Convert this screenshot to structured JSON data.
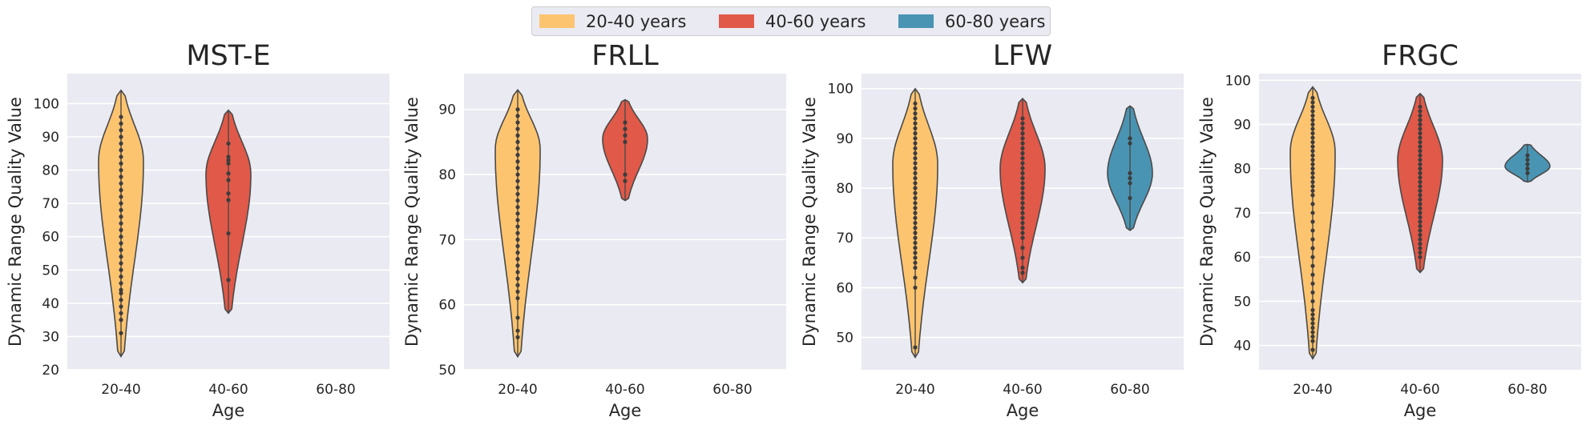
{
  "legend": {
    "items": [
      {
        "label": "20-40 years",
        "color": "#fdc470"
      },
      {
        "label": "40-60 years",
        "color": "#e15948"
      },
      {
        "label": "60-80 years",
        "color": "#4a94b3"
      }
    ]
  },
  "style": {
    "panel_bg": "#eaeaf2",
    "grid_color": "#ffffff",
    "text_color": "#262626",
    "point_color": "#3d3d3d"
  },
  "chart_data": [
    {
      "type": "violin",
      "title": "MST-E",
      "xlabel": "Age",
      "ylabel": "Dynamic Range Quality Value",
      "categories": [
        "20-40",
        "40-60",
        "60-80"
      ],
      "ylim": [
        20,
        109
      ],
      "yticks": [
        20,
        30,
        40,
        50,
        60,
        70,
        80,
        90,
        100
      ],
      "grid": true,
      "violins": [
        {
          "category": "20-40",
          "min": 24,
          "max": 104,
          "peak": 83,
          "points": [
            31,
            35,
            37,
            39,
            41,
            43,
            44,
            46,
            48,
            50,
            52,
            54,
            56,
            58,
            60,
            62,
            64,
            66,
            68,
            70,
            72,
            74,
            76,
            78,
            80,
            82,
            84,
            86,
            88,
            90,
            92,
            94,
            96
          ]
        },
        {
          "category": "40-60",
          "min": 37,
          "max": 98,
          "peak": 79,
          "points": [
            47,
            61,
            71,
            73,
            77,
            79,
            82,
            83,
            84,
            88
          ]
        },
        {
          "category": "60-80",
          "min": null,
          "max": null,
          "points": []
        }
      ]
    },
    {
      "type": "violin",
      "title": "FRLL",
      "xlabel": "Age",
      "ylabel": "Dynamic Range Quality Value",
      "categories": [
        "20-40",
        "40-60",
        "60-80"
      ],
      "ylim": [
        50,
        95.5
      ],
      "yticks": [
        50,
        60,
        70,
        80,
        90
      ],
      "grid": true,
      "violins": [
        {
          "category": "20-40",
          "min": 52,
          "max": 93,
          "peak": 84,
          "points": [
            55,
            56,
            58,
            61,
            62,
            63,
            64,
            65,
            66,
            67,
            68,
            69,
            70,
            71,
            72,
            73,
            74,
            75,
            76,
            77,
            78,
            79,
            80,
            81,
            82,
            83,
            84,
            85,
            86,
            87,
            88,
            89,
            90
          ]
        },
        {
          "category": "40-60",
          "min": 76,
          "max": 91.5,
          "peak": 85.5,
          "points": [
            79,
            80,
            85,
            86,
            87,
            88
          ]
        },
        {
          "category": "60-80",
          "min": null,
          "max": null,
          "points": []
        }
      ]
    },
    {
      "type": "violin",
      "title": "LFW",
      "xlabel": "Age",
      "ylabel": "Dynamic Range Quality Value",
      "categories": [
        "20-40",
        "40-60",
        "60-80"
      ],
      "ylim": [
        43.5,
        103
      ],
      "yticks": [
        50,
        60,
        70,
        80,
        90,
        100
      ],
      "grid": true,
      "violins": [
        {
          "category": "20-40",
          "min": 46,
          "max": 100,
          "peak": 85,
          "points": [
            48,
            60,
            62,
            64,
            65,
            66,
            67,
            68,
            69,
            70,
            71,
            72,
            73,
            74,
            75,
            76,
            77,
            78,
            79,
            80,
            81,
            82,
            83,
            84,
            85,
            86,
            87,
            88,
            89,
            90,
            91,
            92,
            93,
            94,
            95,
            96,
            97
          ]
        },
        {
          "category": "40-60",
          "min": 61,
          "max": 98,
          "peak": 84,
          "points": [
            63,
            64,
            66,
            68,
            70,
            71,
            72,
            73,
            74,
            75,
            76,
            77,
            78,
            79,
            80,
            81,
            82,
            83,
            84,
            85,
            86,
            87,
            88,
            89,
            90,
            91,
            92,
            93,
            94
          ]
        },
        {
          "category": "60-80",
          "min": 71.5,
          "max": 96.5,
          "peak": 83,
          "points": [
            78,
            81,
            82,
            83,
            89,
            90
          ]
        }
      ]
    },
    {
      "type": "violin",
      "title": "FRGC",
      "xlabel": "Age",
      "ylabel": "Dynamic Range Quality Value",
      "categories": [
        "20-40",
        "40-60",
        "60-80"
      ],
      "ylim": [
        34.5,
        101.5
      ],
      "yticks": [
        40,
        50,
        60,
        70,
        80,
        90,
        100
      ],
      "grid": true,
      "violins": [
        {
          "category": "20-40",
          "min": 37,
          "max": 98.5,
          "peak": 84,
          "points": [
            39,
            41,
            42,
            43,
            44,
            45,
            46,
            47,
            48,
            50,
            52,
            54,
            56,
            58,
            60,
            62,
            64,
            66,
            68,
            70,
            72,
            74,
            75,
            76,
            77,
            78,
            79,
            80,
            81,
            82,
            83,
            84,
            85,
            86,
            87,
            88,
            89,
            90,
            91,
            92,
            93,
            94,
            95,
            96
          ]
        },
        {
          "category": "40-60",
          "min": 56.5,
          "max": 97,
          "peak": 82,
          "points": [
            60,
            61,
            62,
            63,
            64,
            65,
            66,
            67,
            68,
            69,
            70,
            71,
            72,
            73,
            74,
            75,
            76,
            77,
            78,
            79,
            80,
            81,
            82,
            83,
            84,
            85,
            86,
            87,
            88,
            89,
            90,
            91,
            92,
            93,
            94
          ]
        },
        {
          "category": "60-80",
          "min": 77,
          "max": 85.5,
          "peak": 80.5,
          "points": [
            79,
            80,
            81,
            82,
            83
          ]
        }
      ]
    }
  ]
}
